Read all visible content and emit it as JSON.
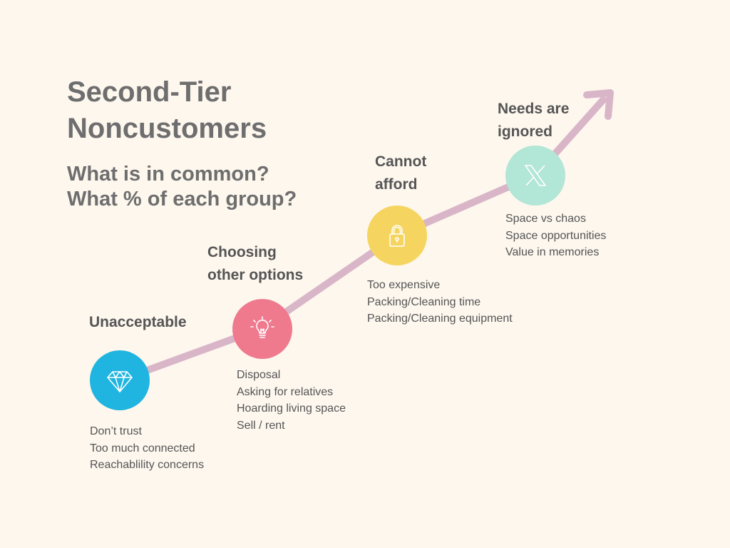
{
  "title": {
    "line1": "Second-Tier",
    "line2": "Noncustomers"
  },
  "subtitle": {
    "line1": "What is in common?",
    "line2": "What % of each group?"
  },
  "colors": {
    "background": "#fdf7ee",
    "arrow": "#d9b5c8",
    "unacceptable": "#1fb5e0",
    "choosing": "#ef7a8e",
    "afford": "#f5d55f",
    "ignored": "#b2e6d6"
  },
  "stages": {
    "unacceptable": {
      "label": "Unacceptable",
      "icon": "diamond-icon",
      "items": [
        "Don’t trust",
        "Too much connected",
        "Reachablility concerns"
      ]
    },
    "choosing": {
      "label_line1": "Choosing",
      "label_line2": "other options",
      "icon": "lightbulb-icon",
      "items": [
        "Disposal",
        "Asking for relatives",
        "Hoarding living space",
        "Sell / rent"
      ]
    },
    "afford": {
      "label_line1": "Cannot",
      "label_line2": "afford",
      "icon": "padlock-icon",
      "items": [
        "Too expensive",
        "Packing/Cleaning time",
        "Packing/Cleaning equipment"
      ]
    },
    "ignored": {
      "label_line1": "Needs are",
      "label_line2": "ignored",
      "icon": "x-icon",
      "items": [
        "Space vs chaos",
        "Space opportunities",
        "Value in memories"
      ]
    }
  }
}
